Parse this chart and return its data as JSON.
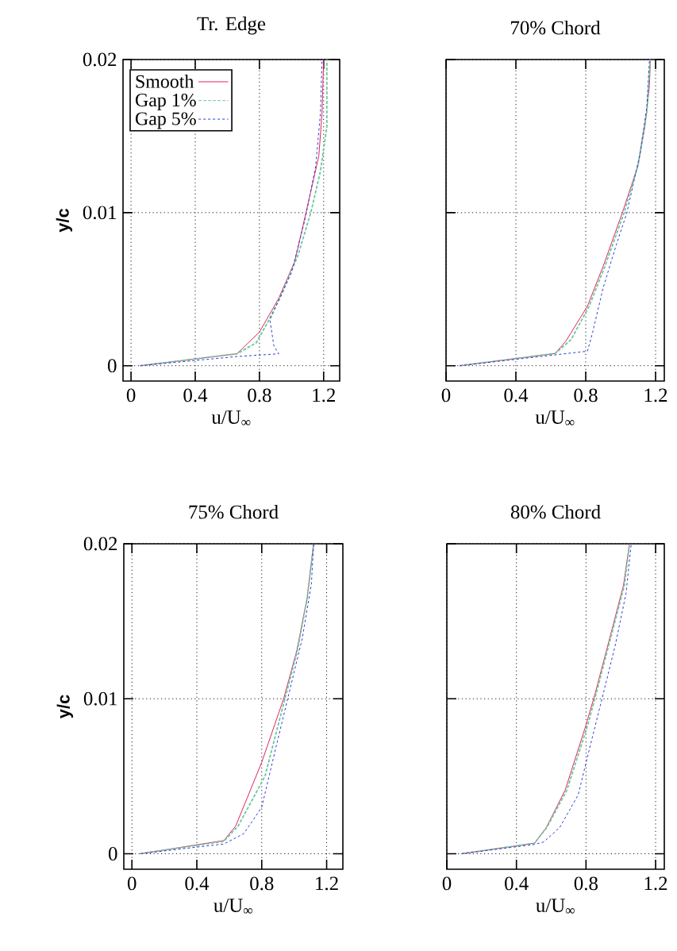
{
  "chart_data": [
    {
      "type": "line",
      "title": "Tr. Edge",
      "xlabel": "u/U$_{∞}$",
      "ylabel": "y/c",
      "xlim": [
        -0.05,
        1.3
      ],
      "ylim": [
        -0.001,
        0.02
      ],
      "xticks": [
        0,
        0.4,
        0.8,
        1.2
      ],
      "yticks": [
        0,
        0.01,
        0.02
      ],
      "grid": true,
      "legend": "top left",
      "series": [
        {
          "name": "Smooth",
          "color": "#e0245c",
          "line_style": "solid",
          "x": [
            0.057,
            0.66,
            0.8,
            0.92,
            1.02,
            1.09,
            1.17,
            1.19,
            1.2
          ],
          "values": [
            0,
            0.00078,
            0.0022,
            0.0044,
            0.0068,
            0.01,
            0.0137,
            0.0165,
            0.02
          ]
        },
        {
          "name": "Gap 1%",
          "color": "#6cc89c",
          "line_style": "dashed",
          "x": [
            0.057,
            0.66,
            0.78,
            0.86,
            0.94,
            1.04,
            1.12,
            1.18,
            1.22,
            1.22
          ],
          "values": [
            0,
            0.00078,
            0.0015,
            0.003,
            0.0047,
            0.0072,
            0.01,
            0.0127,
            0.0156,
            0.02
          ]
        },
        {
          "name": "Gap 5%",
          "color": "#2c3cd8",
          "line_style": "dotted",
          "x": [
            0.057,
            0.66,
            0.92,
            0.89,
            0.865,
            1.0,
            1.085,
            1.15,
            1.18,
            1.19
          ],
          "values": [
            0,
            0.0006,
            0.00078,
            0.0013,
            0.003,
            0.0061,
            0.0096,
            0.013,
            0.0165,
            0.02
          ]
        }
      ]
    },
    {
      "type": "line",
      "title": "70% Chord",
      "xlabel": "u/U$_{∞}$",
      "xlim": [
        0,
        1.25
      ],
      "ylim": [
        -0.001,
        0.02
      ],
      "xticks": [
        0,
        0.4,
        0.8,
        1.2
      ],
      "yticks": [
        0,
        0.01,
        0.02
      ],
      "grid": true,
      "tick_labels": "x",
      "series": [
        {
          "color": "#e0245c",
          "line_style": "solid",
          "x": [
            0.078,
            0.625,
            0.686,
            0.81,
            0.9,
            1.01,
            1.1,
            1.14,
            1.165,
            1.17
          ],
          "values": [
            0,
            0.0008,
            0.0016,
            0.0039,
            0.0065,
            0.01,
            0.0131,
            0.0157,
            0.0183,
            0.02
          ]
        },
        {
          "color": "#6cc89c",
          "line_style": "dashed",
          "x": [
            0.078,
            0.625,
            0.716,
            0.82,
            0.91,
            1.02,
            1.1,
            1.15,
            1.17
          ],
          "values": [
            0,
            0.0008,
            0.0017,
            0.0039,
            0.0065,
            0.01,
            0.0131,
            0.0166,
            0.02
          ]
        },
        {
          "color": "#2c3cd8",
          "line_style": "dotted",
          "x": [
            0.078,
            0.81,
            0.84,
            0.9,
            0.975,
            1.036,
            1.11,
            1.15,
            1.165
          ],
          "values": [
            0,
            0.00095,
            0.0022,
            0.0051,
            0.0079,
            0.01,
            0.0138,
            0.0169,
            0.02
          ]
        }
      ]
    },
    {
      "type": "line",
      "title": "75% Chord",
      "xlabel": "u/U$_{∞}$",
      "ylabel": "y/c",
      "xlim": [
        -0.05,
        1.3
      ],
      "ylim": [
        -0.001,
        0.02
      ],
      "xticks": [
        0,
        0.4,
        0.8,
        1.2
      ],
      "yticks": [
        0,
        0.01,
        0.02
      ],
      "grid": true,
      "series": [
        {
          "color": "#e0245c",
          "line_style": "solid",
          "x": [
            0.052,
            0.567,
            0.64,
            0.8,
            0.935,
            1.016,
            1.08,
            1.12
          ],
          "values": [
            0,
            0.00085,
            0.0018,
            0.0059,
            0.01,
            0.0131,
            0.0165,
            0.02
          ]
        },
        {
          "color": "#6cc89c",
          "line_style": "dashed",
          "x": [
            0.052,
            0.567,
            0.655,
            0.82,
            0.943,
            1.02,
            1.08,
            1.12
          ],
          "values": [
            0,
            0.0008,
            0.0018,
            0.005,
            0.01,
            0.0131,
            0.0165,
            0.02
          ]
        },
        {
          "color": "#2c3cd8",
          "line_style": "dotted",
          "x": [
            0.052,
            0.567,
            0.69,
            0.8,
            0.886,
            0.96,
            1.05,
            1.106,
            1.12
          ],
          "values": [
            0,
            0.00063,
            0.0013,
            0.003,
            0.0068,
            0.01,
            0.0139,
            0.0174,
            0.02
          ]
        }
      ]
    },
    {
      "type": "line",
      "title": "80% Chord",
      "xlabel": "u/U$_{∞}$",
      "xlim": [
        0,
        1.25
      ],
      "ylim": [
        -0.001,
        0.02
      ],
      "xticks": [
        0,
        0.4,
        0.8,
        1.2
      ],
      "yticks": [
        0,
        0.01,
        0.02
      ],
      "grid": true,
      "tick_labels": "x",
      "series": [
        {
          "color": "#e0245c",
          "line_style": "solid",
          "x": [
            0.085,
            0.504,
            0.572,
            0.68,
            0.8,
            0.854,
            0.95,
            1.015,
            1.05
          ],
          "values": [
            0,
            0.00068,
            0.0017,
            0.0041,
            0.0083,
            0.0104,
            0.0145,
            0.0173,
            0.02
          ]
        },
        {
          "color": "#6cc89c",
          "line_style": "dashed",
          "x": [
            0.085,
            0.504,
            0.575,
            0.69,
            0.81,
            0.86,
            0.955,
            1.02,
            1.05
          ],
          "values": [
            0,
            0.00068,
            0.0017,
            0.0041,
            0.0083,
            0.0104,
            0.0145,
            0.0173,
            0.02
          ]
        },
        {
          "color": "#2c3cd8",
          "line_style": "dotted",
          "x": [
            0.085,
            0.504,
            0.557,
            0.649,
            0.755,
            0.816,
            0.892,
            0.969,
            1.03,
            1.06
          ],
          "values": [
            0,
            0.0006,
            0.00076,
            0.0017,
            0.0038,
            0.0066,
            0.01,
            0.0135,
            0.0168,
            0.02
          ]
        }
      ]
    }
  ]
}
